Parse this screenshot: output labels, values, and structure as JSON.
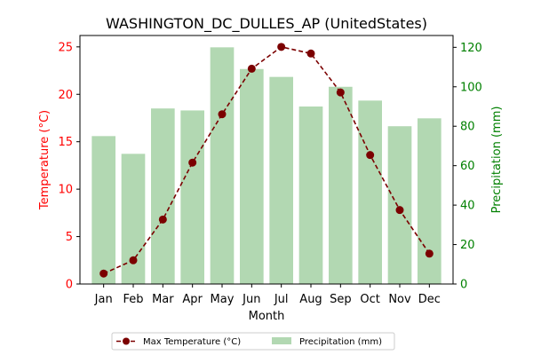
{
  "chart_data": {
    "type": "bar+line",
    "title": "WASHINGTON_DC_DULLES_AP (UnitedStates)",
    "xlabel": "Month",
    "ylabel_left": "Temperature (°C)",
    "ylabel_right": "Precipitation (mm)",
    "categories": [
      "Jan",
      "Feb",
      "Mar",
      "Apr",
      "May",
      "Jun",
      "Jul",
      "Aug",
      "Sep",
      "Oct",
      "Nov",
      "Dec"
    ],
    "ylim_left": [
      0,
      26.2
    ],
    "ylim_right": [
      0,
      126
    ],
    "yticks_left": [
      0,
      5,
      10,
      15,
      20,
      25
    ],
    "yticks_right": [
      0,
      20,
      40,
      60,
      80,
      100,
      120
    ],
    "series": [
      {
        "name": "Max Temperature (°C)",
        "type": "line",
        "axis": "left",
        "color": "#7b0000",
        "values": [
          1.1,
          2.5,
          6.8,
          12.8,
          17.9,
          22.7,
          25.0,
          24.3,
          20.2,
          13.6,
          7.8,
          3.2
        ]
      },
      {
        "name": "Precipitation (mm)",
        "type": "bar",
        "axis": "right",
        "color": "#b2d8b2",
        "values": [
          75,
          66,
          89,
          88,
          120,
          109,
          105,
          90,
          100,
          93,
          80,
          84
        ]
      }
    ],
    "legend_position": "bottom-center",
    "grid": false,
    "colors": {
      "left_axis": "#ff0000",
      "right_axis": "#008000"
    }
  }
}
